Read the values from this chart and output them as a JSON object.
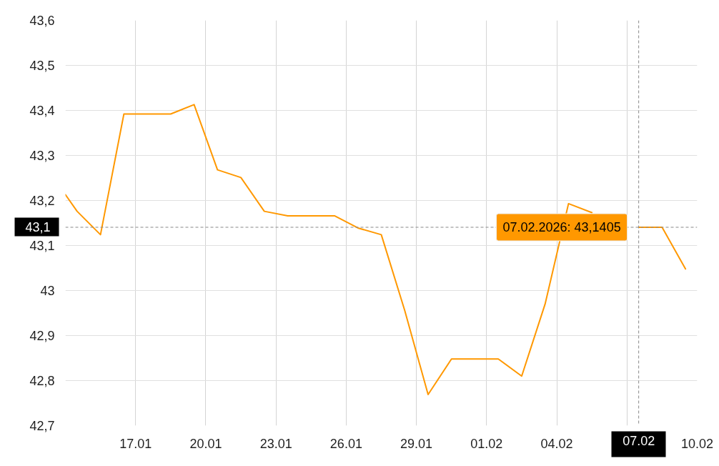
{
  "chart_data": {
    "type": "line",
    "x": [
      "2026-01-14T00:00",
      "2026-01-14T12:00",
      "2026-01-15T12:00",
      "2026-01-16T12:00",
      "2026-01-17T12:00",
      "2026-01-18T12:00",
      "2026-01-19T12:00",
      "2026-01-20T12:00",
      "2026-01-21T12:00",
      "2026-01-22T12:00",
      "2026-01-23T12:00",
      "2026-01-24T12:00",
      "2026-01-25T12:00",
      "2026-01-26T12:00",
      "2026-01-27T12:00",
      "2026-01-28T12:00",
      "2026-01-29T12:00",
      "2026-01-30T12:00",
      "2026-01-31T12:00",
      "2026-02-01T12:00",
      "2026-02-02T12:00",
      "2026-02-03T12:00",
      "2026-02-04T12:00",
      "2026-02-05T12:00",
      "2026-02-06T12:00",
      "2026-02-07T12:00",
      "2026-02-08T12:00",
      "2026-02-09T12:00"
    ],
    "series": [
      {
        "color": "#ff9800",
        "values": [
          43.213,
          43.176,
          43.124,
          43.392,
          43.392,
          43.392,
          43.413,
          43.268,
          43.251,
          43.176,
          43.166,
          43.166,
          43.166,
          43.139,
          43.124,
          42.956,
          42.769,
          42.848,
          42.848,
          42.848,
          42.81,
          42.97,
          43.193,
          43.173,
          null,
          43.1405,
          43.1405,
          43.048
        ]
      }
    ],
    "xlim": [
      "2026-01-14",
      "2026-02-10"
    ],
    "xticks": [
      {
        "value": "2026-01-17",
        "label": "17.01"
      },
      {
        "value": "2026-01-20",
        "label": "20.01"
      },
      {
        "value": "2026-01-23",
        "label": "23.01"
      },
      {
        "value": "2026-01-26",
        "label": "26.01"
      },
      {
        "value": "2026-01-29",
        "label": "29.01"
      },
      {
        "value": "2026-02-01",
        "label": "01.02"
      },
      {
        "value": "2026-02-04",
        "label": "04.02"
      },
      {
        "value": "2026-02-07",
        "label": null
      },
      {
        "value": "2026-02-10",
        "label": "10.02"
      }
    ],
    "ylim": [
      42.7,
      43.6
    ],
    "yticks": [
      {
        "value": 42.7,
        "label": "42,7"
      },
      {
        "value": 42.8,
        "label": "42,8"
      },
      {
        "value": 42.9,
        "label": "42,9"
      },
      43,
      {
        "value": 43.1,
        "label": "43,1"
      },
      {
        "value": 43.2,
        "label": "43,2"
      },
      {
        "value": 43.3,
        "label": "43,3"
      },
      {
        "value": 43.4,
        "label": "43,4"
      },
      {
        "value": 43.5,
        "label": "43,5"
      },
      {
        "value": 43.6,
        "label": "43,6"
      }
    ],
    "grid": true,
    "ref_lines": [
      {
        "axis": "y",
        "value": 43.1405,
        "label": "43,1",
        "color": "#888888",
        "line_style": "dashed"
      },
      {
        "axis": "x",
        "value": "2026-02-07T12:00",
        "label": "07.02",
        "color": "#888888",
        "line_style": "dashed"
      }
    ],
    "annotations": [
      {
        "text": "07.02.2026: 43,1405",
        "x": "2026-02-07T12:00",
        "y": 43.1405
      }
    ]
  }
}
